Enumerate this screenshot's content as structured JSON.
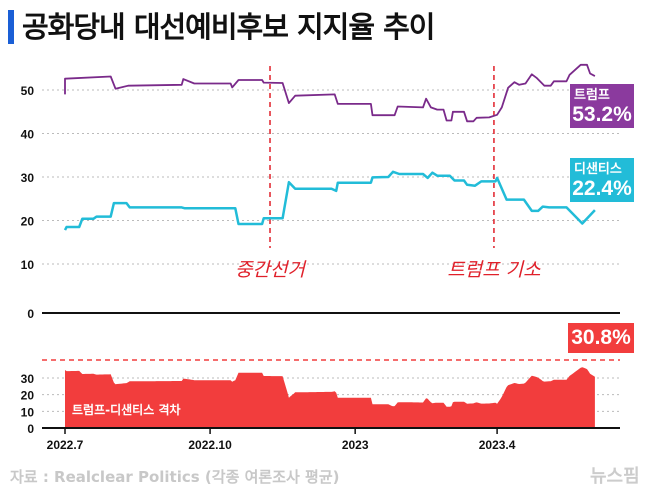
{
  "title": "공화당내 대선예비후보 지지율 추이",
  "colors": {
    "trump": "#7a2a8a",
    "trump_box": "#8b3a9e",
    "desantis": "#22bcd8",
    "gap": "#f23d3d",
    "title_bar": "#1a5fd6"
  },
  "chart_data": [
    {
      "type": "line",
      "yticks": [
        10,
        20,
        30,
        40,
        50
      ],
      "ylim": [
        0,
        55
      ],
      "grid": true,
      "series": [
        {
          "name": "트럼프",
          "label_value": "53.2%",
          "points": [
            [
              "2022-07-01",
              49
            ],
            [
              "2022-07-01",
              52.6
            ],
            [
              "2022-07-30",
              53.1
            ],
            [
              "2022-08-02",
              50.3
            ],
            [
              "2022-08-10",
              51.0
            ],
            [
              "2022-09-13",
              51.2
            ],
            [
              "2022-09-14",
              52.5
            ],
            [
              "2022-09-21",
              51.5
            ],
            [
              "2022-10-14",
              51.5
            ],
            [
              "2022-10-15",
              50.6
            ],
            [
              "2022-10-19",
              52.3
            ],
            [
              "2022-11-03",
              52.3
            ],
            [
              "2022-11-04",
              51.7
            ],
            [
              "2022-11-16",
              51.6
            ],
            [
              "2022-11-20",
              47.0
            ],
            [
              "2022-11-24",
              48.7
            ],
            [
              "2022-12-19",
              49.0
            ],
            [
              "2022-12-21",
              46.8
            ],
            [
              "2023-01-11",
              46.8
            ],
            [
              "2023-01-12",
              44.2
            ],
            [
              "2023-01-26",
              44.2
            ],
            [
              "2023-01-28",
              46.2
            ],
            [
              "2023-02-13",
              46.0
            ],
            [
              "2023-02-15",
              48.0
            ],
            [
              "2023-02-18",
              46.0
            ],
            [
              "2023-02-22",
              45.5
            ],
            [
              "2023-02-26",
              45.5
            ],
            [
              "2023-02-28",
              43.0
            ],
            [
              "2023-03-03",
              43.0
            ],
            [
              "2023-03-04",
              45.0
            ],
            [
              "2023-03-11",
              45.0
            ],
            [
              "2023-03-13",
              42.8
            ],
            [
              "2023-03-17",
              42.8
            ],
            [
              "2023-03-19",
              43.6
            ],
            [
              "2023-03-27",
              43.7
            ],
            [
              "2023-04-01",
              44.3
            ],
            [
              "2023-04-04",
              46.0
            ],
            [
              "2023-04-08",
              50.5
            ],
            [
              "2023-04-12",
              51.8
            ],
            [
              "2023-04-15",
              51.2
            ],
            [
              "2023-04-19",
              51.5
            ],
            [
              "2023-04-23",
              53.6
            ],
            [
              "2023-04-26",
              52.8
            ],
            [
              "2023-05-01",
              51.0
            ],
            [
              "2023-05-05",
              51.0
            ],
            [
              "2023-05-07",
              52.0
            ],
            [
              "2023-05-15",
              52.0
            ],
            [
              "2023-05-17",
              53.5
            ],
            [
              "2023-05-24",
              55.8
            ],
            [
              "2023-05-28",
              55.8
            ],
            [
              "2023-05-30",
              53.8
            ],
            [
              "2023-06-02",
              53.2
            ]
          ]
        },
        {
          "name": "디샌티스",
          "label_value": "22.4%",
          "points": [
            [
              "2022-07-01",
              17.8
            ],
            [
              "2022-07-02",
              18.5
            ],
            [
              "2022-07-10",
              18.5
            ],
            [
              "2022-07-12",
              20.4
            ],
            [
              "2022-07-19",
              20.4
            ],
            [
              "2022-07-21",
              20.9
            ],
            [
              "2022-07-30",
              20.9
            ],
            [
              "2022-08-01",
              24.0
            ],
            [
              "2022-08-09",
              24.0
            ],
            [
              "2022-08-11",
              23.0
            ],
            [
              "2022-09-13",
              23.0
            ],
            [
              "2022-09-15",
              22.8
            ],
            [
              "2022-10-17",
              22.8
            ],
            [
              "2022-10-19",
              19.2
            ],
            [
              "2022-11-03",
              19.2
            ],
            [
              "2022-11-04",
              20.5
            ],
            [
              "2022-11-16",
              20.5
            ],
            [
              "2022-11-20",
              28.8
            ],
            [
              "2022-11-24",
              27.3
            ],
            [
              "2022-12-17",
              27.3
            ],
            [
              "2022-12-20",
              26.8
            ],
            [
              "2022-12-21",
              28.7
            ],
            [
              "2023-01-11",
              28.7
            ],
            [
              "2023-01-12",
              29.9
            ],
            [
              "2023-01-22",
              30.0
            ],
            [
              "2023-01-25",
              31.2
            ],
            [
              "2023-01-29",
              30.7
            ],
            [
              "2023-02-13",
              30.7
            ],
            [
              "2023-02-16",
              29.8
            ],
            [
              "2023-02-19",
              31.0
            ],
            [
              "2023-02-22",
              30.3
            ],
            [
              "2023-03-02",
              30.3
            ],
            [
              "2023-03-05",
              29.2
            ],
            [
              "2023-03-11",
              29.2
            ],
            [
              "2023-03-13",
              28.2
            ],
            [
              "2023-03-18",
              28.0
            ],
            [
              "2023-03-22",
              29.0
            ],
            [
              "2023-03-31",
              29.0
            ],
            [
              "2023-04-01",
              29.8
            ],
            [
              "2023-04-07",
              24.8
            ],
            [
              "2023-04-18",
              24.8
            ],
            [
              "2023-04-23",
              22.2
            ],
            [
              "2023-04-27",
              22.2
            ],
            [
              "2023-04-30",
              23.2
            ],
            [
              "2023-05-04",
              23.0
            ],
            [
              "2023-05-15",
              23.0
            ],
            [
              "2023-05-25",
              19.3
            ],
            [
              "2023-06-02",
              22.4
            ]
          ]
        }
      ],
      "annotations": [
        {
          "date": "2022-11-08",
          "label": "중간선거"
        },
        {
          "date": "2023-03-30",
          "label": "트럼프 기소"
        }
      ]
    },
    {
      "type": "area",
      "name": "트럼프-디샌티스 격차",
      "label_value": "30.8%",
      "yticks": [
        0,
        10,
        20,
        30
      ],
      "ylim": [
        0,
        40
      ],
      "derived": "트럼프 - 디샌티스",
      "xticks": [
        {
          "date": "2022-07-01",
          "label": "2022.7"
        },
        {
          "date": "2022-10-01",
          "label": "2022.10"
        },
        {
          "date": "2023-01-01",
          "label": "2023"
        },
        {
          "date": "2023-04-01",
          "label": "2023.4"
        }
      ]
    }
  ],
  "zero_label": "0",
  "source": "자료 : Realclear Politics (각종 여론조사 평균)",
  "logo": "뉴스핌"
}
